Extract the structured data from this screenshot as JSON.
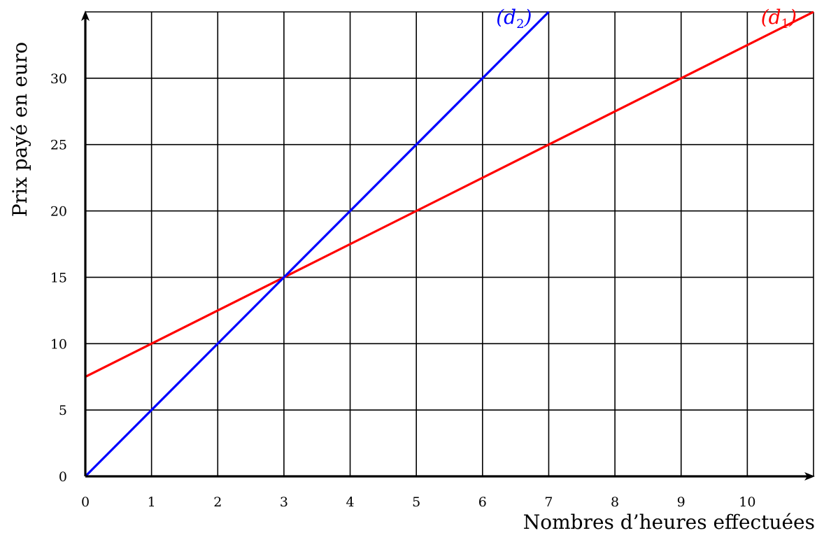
{
  "chart_data": {
    "type": "line",
    "xlabel": "Nombres d’heures effectuées",
    "ylabel": "Prix payé en euro",
    "x_ticks": [
      "0",
      "1",
      "2",
      "3",
      "4",
      "5",
      "6",
      "7",
      "8",
      "9",
      "10"
    ],
    "y_ticks": [
      "0",
      "5",
      "10",
      "15",
      "20",
      "25",
      "30"
    ],
    "xlim": [
      0,
      11
    ],
    "ylim": [
      0,
      35
    ],
    "grid": true,
    "series": [
      {
        "name": "(d1)",
        "label_main": "(d",
        "label_sub": "1",
        "label_close": ")",
        "color": "#ff0000",
        "x": [
          0,
          11
        ],
        "y": [
          7.5,
          35
        ]
      },
      {
        "name": "(d2)",
        "label_main": "(d",
        "label_sub": "2",
        "label_close": ")",
        "color": "#0000ff",
        "x": [
          0,
          7
        ],
        "y": [
          0,
          35
        ]
      }
    ]
  }
}
